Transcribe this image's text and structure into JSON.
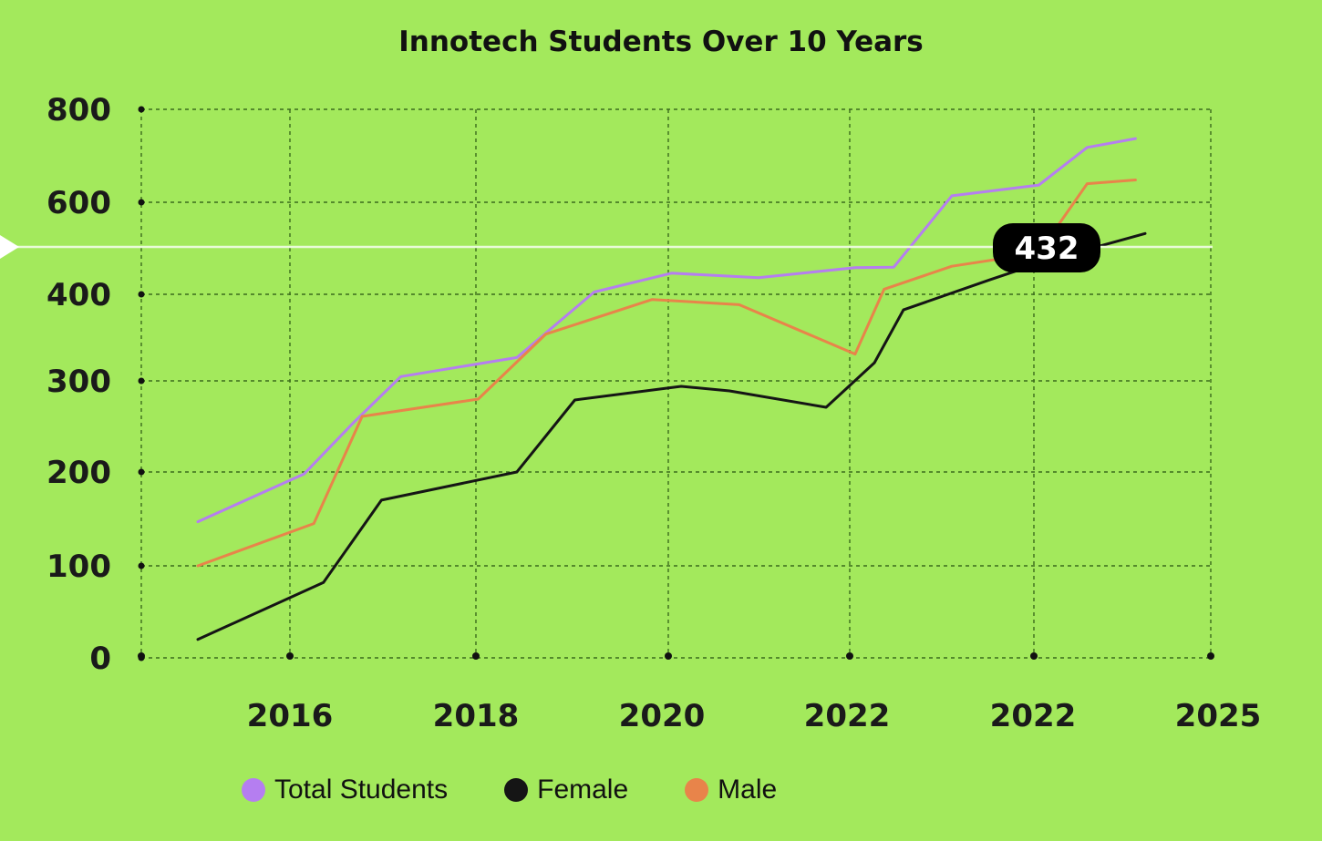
{
  "chart_data": {
    "type": "line",
    "title": "Innotech Students Over 10 Years",
    "y_ticks": [
      0,
      100,
      200,
      300,
      400,
      600,
      800
    ],
    "x_tick_labels": [
      "2016",
      "2018",
      "2020",
      "2022",
      "2022",
      "2025"
    ],
    "series": [
      {
        "name": "Total Students",
        "color": "#b57ef0",
        "points": [
          [
            2015.0,
            147
          ],
          [
            2016.1,
            198
          ],
          [
            2016.6,
            253
          ],
          [
            2017.1,
            305
          ],
          [
            2018.3,
            327
          ],
          [
            2019.1,
            405
          ],
          [
            2019.9,
            446
          ],
          [
            2020.8,
            436
          ],
          [
            2021.8,
            458
          ],
          [
            2022.2,
            459
          ],
          [
            2022.8,
            614
          ],
          [
            2023.7,
            637
          ],
          [
            2024.2,
            718
          ],
          [
            2024.7,
            737
          ]
        ]
      },
      {
        "name": "Female",
        "color": "#151515",
        "points": [
          [
            2015.0,
            20
          ],
          [
            2016.3,
            82
          ],
          [
            2016.9,
            170
          ],
          [
            2018.3,
            200
          ],
          [
            2018.9,
            279
          ],
          [
            2020.0,
            294
          ],
          [
            2020.5,
            289
          ],
          [
            2021.5,
            271
          ],
          [
            2022.0,
            321
          ],
          [
            2022.3,
            382
          ],
          [
            2023.2,
            432
          ],
          [
            2023.8,
            474
          ],
          [
            2024.8,
            532
          ]
        ]
      },
      {
        "name": "Male",
        "color": "#e8844a",
        "points": [
          [
            2015.0,
            100
          ],
          [
            2016.2,
            145
          ],
          [
            2016.7,
            261
          ],
          [
            2017.9,
            280
          ],
          [
            2018.6,
            354
          ],
          [
            2019.7,
            394
          ],
          [
            2020.6,
            388
          ],
          [
            2021.8,
            331
          ],
          [
            2022.1,
            411
          ],
          [
            2022.8,
            461
          ],
          [
            2023.7,
            490
          ],
          [
            2024.2,
            640
          ],
          [
            2024.7,
            648
          ]
        ]
      }
    ],
    "highlight": {
      "label": "432",
      "series": "Female",
      "x": 2023.2,
      "y": 432
    }
  }
}
